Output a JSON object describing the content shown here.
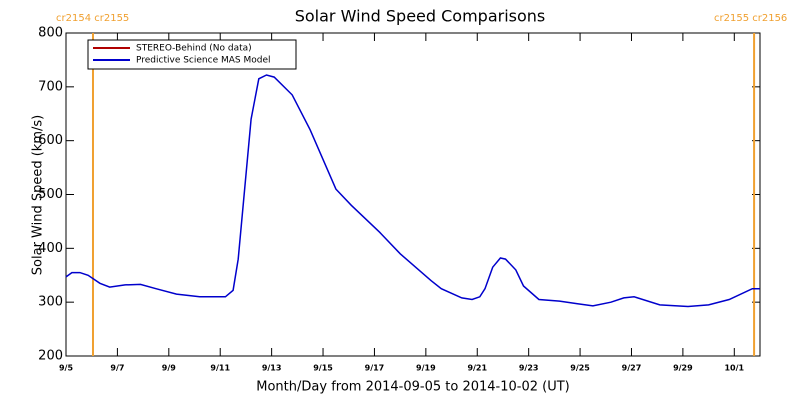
{
  "chart_data": {
    "type": "line",
    "title": "Solar Wind Speed Comparisons",
    "x_label": "Month/Day from 2014-09-05 to 2014-10-02 (UT)",
    "y_label": "Solar Wind Speed (km/s)",
    "x": [
      5.0,
      5.23,
      5.54,
      5.86,
      6.32,
      6.7,
      7.3,
      7.9,
      8.5,
      9.3,
      10.2,
      11.2,
      11.5,
      11.7,
      12.2,
      12.5,
      12.8,
      13.1,
      13.8,
      14.5,
      15.5,
      16.1,
      17.2,
      18.0,
      19.2,
      19.6,
      20.4,
      20.8,
      21.1,
      21.3,
      21.6,
      21.9,
      22.1,
      22.5,
      22.8,
      23.4,
      24.2,
      24.9,
      25.5,
      26.2,
      26.7,
      27.1,
      28.1,
      29.2,
      30.0,
      30.8,
      31.7,
      32.0
    ],
    "series": [
      {
        "name": "STEREO-Behind (No data)",
        "color": "#b00000",
        "values": [
          null,
          null,
          null,
          null,
          null,
          null,
          null,
          null,
          null,
          null,
          null,
          null,
          null,
          null,
          null,
          null,
          null,
          null,
          null,
          null,
          null,
          null,
          null,
          null,
          null,
          null,
          null,
          null,
          null,
          null,
          null,
          null,
          null,
          null,
          null,
          null,
          null,
          null,
          null,
          null,
          null,
          null,
          null,
          null,
          null,
          null,
          null,
          null
        ]
      },
      {
        "name": "Predictive Science MAS Model",
        "color": "#0000cc",
        "values": [
          347,
          355,
          355,
          350,
          335,
          328,
          332,
          333,
          325,
          315,
          310,
          310,
          322,
          380,
          640,
          715,
          722,
          718,
          685,
          620,
          510,
          480,
          430,
          390,
          340,
          325,
          308,
          305,
          310,
          325,
          365,
          382,
          380,
          360,
          330,
          305,
          302,
          297,
          293,
          300,
          308,
          310,
          295,
          292,
          295,
          305,
          325,
          325
        ]
      }
    ],
    "xlim": [
      5,
      32
    ],
    "xticks": [
      {
        "value": 5,
        "label": "9/5"
      },
      {
        "value": 7,
        "label": "9/7"
      },
      {
        "value": 9,
        "label": "9/9"
      },
      {
        "value": 11,
        "label": "9/11"
      },
      {
        "value": 13,
        "label": "9/13"
      },
      {
        "value": 15,
        "label": "9/15"
      },
      {
        "value": 17,
        "label": "9/17"
      },
      {
        "value": 19,
        "label": "9/19"
      },
      {
        "value": 21,
        "label": "9/21"
      },
      {
        "value": 23,
        "label": "9/23"
      },
      {
        "value": 25,
        "label": "9/25"
      },
      {
        "value": 27,
        "label": "9/27"
      },
      {
        "value": 29,
        "label": "9/29"
      },
      {
        "value": 31,
        "label": "10/1"
      }
    ],
    "ylim": [
      200,
      800
    ],
    "yticks": [
      200,
      300,
      400,
      500,
      600,
      700,
      800
    ],
    "markers": [
      {
        "x": 6.05,
        "label": "cr2154 cr2155",
        "color": "#f0a030"
      },
      {
        "x": 31.77,
        "label": "cr2155 cr2156",
        "color": "#f0a030"
      }
    ],
    "legend": "upper left"
  }
}
